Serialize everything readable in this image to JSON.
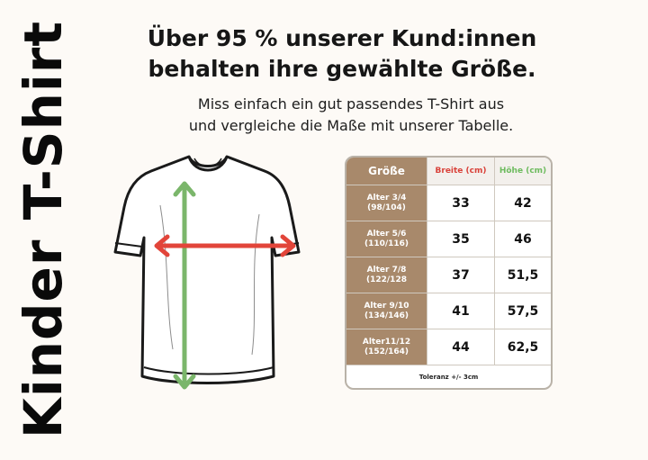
{
  "side_title": "Kinder T-Shirt",
  "headline": {
    "line1": "Über 95 % unserer Kund:innen",
    "line2": "behalten ihre gewählte Größe."
  },
  "subline": {
    "line1": "Miss einfach ein gut passendes T-Shirt aus",
    "line2": "und vergleiche die Maße mit unserer Tabelle."
  },
  "colors": {
    "width_arrow": "#e2453a",
    "height_arrow": "#7bb66b",
    "table_header_bg": "#a8896b"
  },
  "size_table": {
    "headers": [
      "Größe",
      "Breite (cm)",
      "Höhe (cm)"
    ],
    "rows": [
      {
        "age": "Alter 3/4",
        "size": "(98/104)",
        "width": "33",
        "height": "42"
      },
      {
        "age": "Alter 5/6",
        "size": "(110/116)",
        "width": "35",
        "height": "46"
      },
      {
        "age": "Alter 7/8",
        "size": "(122/128",
        "width": "37",
        "height": "51,5"
      },
      {
        "age": "Alter 9/10",
        "size": "(134/146)",
        "width": "41",
        "height": "57,5"
      },
      {
        "age": "Alter11/12",
        "size": "(152/164)",
        "width": "44",
        "height": "62,5"
      }
    ],
    "tolerance": "Toleranz +/- 3cm"
  }
}
